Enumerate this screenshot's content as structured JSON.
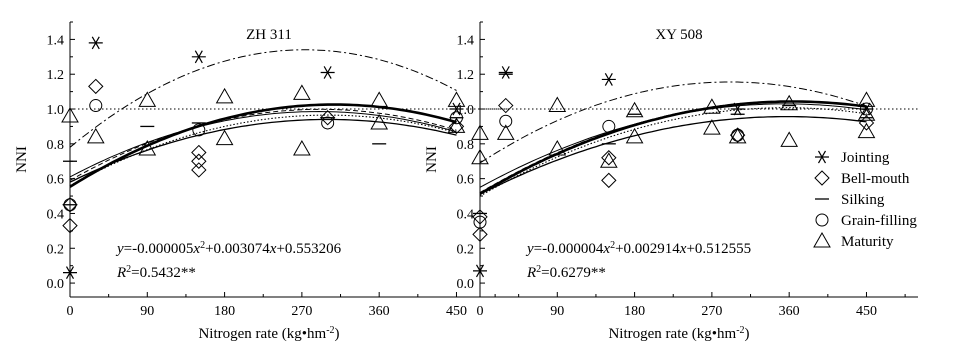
{
  "chart_data": [
    {
      "type": "scatter",
      "title": "ZH 311",
      "xlabel": "Nitrogen rate (kg•hm-2)",
      "ylabel": "NNI",
      "xlim": [
        0,
        510
      ],
      "ylim": [
        -0.08,
        1.5
      ],
      "xticks": [
        0,
        90,
        180,
        270,
        360,
        450
      ],
      "yticks": [
        0.0,
        0.2,
        0.4,
        0.6,
        0.8,
        1.0,
        1.2,
        1.4
      ],
      "reference_line": 1.0,
      "equation": "y=-0.000005x2+0.003074x+0.553206",
      "r2": "R2=0.5432**",
      "series": [
        {
          "name": "Jointing",
          "marker": "asterisk",
          "x": [
            0,
            30,
            150,
            300,
            450
          ],
          "y": [
            0.06,
            1.38,
            1.3,
            1.21,
            1.0
          ]
        },
        {
          "name": "Bell-mouth",
          "marker": "diamond",
          "x": [
            0,
            0,
            30,
            150,
            150,
            150,
            300,
            450
          ],
          "y": [
            0.33,
            0.45,
            1.13,
            0.65,
            0.7,
            0.75,
            0.95,
            0.9
          ]
        },
        {
          "name": "Silking",
          "marker": "dash",
          "x": [
            0,
            0,
            90,
            150,
            300,
            360,
            450
          ],
          "y": [
            0.45,
            0.7,
            0.9,
            0.92,
            0.95,
            0.8,
            0.95
          ]
        },
        {
          "name": "Grain-filling",
          "marker": "circle",
          "x": [
            0,
            30,
            150,
            300,
            450
          ],
          "y": [
            0.45,
            1.02,
            0.88,
            0.92,
            0.95
          ]
        },
        {
          "name": "Maturity",
          "marker": "triangle",
          "x": [
            0,
            30,
            90,
            90,
            180,
            180,
            270,
            270,
            360,
            360,
            450,
            450
          ],
          "y": [
            0.96,
            0.84,
            1.05,
            0.77,
            1.07,
            0.83,
            1.09,
            0.77,
            1.05,
            0.92,
            1.05,
            0.9
          ]
        }
      ],
      "fits": [
        {
          "style": "bold",
          "coef": [
            -5e-06,
            0.003074,
            0.553206
          ]
        },
        {
          "style": "dashdot",
          "coef": [
            -7.5e-06,
            0.0041,
            0.78
          ]
        },
        {
          "style": "thin",
          "coef": [
            -4.5e-06,
            0.0026,
            0.61
          ]
        },
        {
          "style": "dashed",
          "coef": [
            -4.8e-06,
            0.0028,
            0.59
          ]
        },
        {
          "style": "dotted",
          "coef": [
            -4.5e-06,
            0.0027,
            0.56
          ]
        },
        {
          "style": "solid",
          "coef": [
            -4e-06,
            0.0024,
            0.58
          ]
        }
      ]
    },
    {
      "type": "scatter",
      "title": "XY 508",
      "xlabel": "Nitrogen rate (kg•hm-2)",
      "ylabel": "NNI",
      "xlim": [
        0,
        510
      ],
      "ylim": [
        -0.08,
        1.5
      ],
      "xticks": [
        0,
        90,
        180,
        270,
        360,
        450
      ],
      "yticks": [
        0.0,
        0.2,
        0.4,
        0.6,
        0.8,
        1.0,
        1.2,
        1.4
      ],
      "reference_line": 1.0,
      "equation": "y=-0.000004x2+0.002914x+0.512555",
      "r2": "R2=0.6279**",
      "series": [
        {
          "name": "Jointing",
          "marker": "asterisk",
          "x": [
            0,
            30,
            150,
            300,
            450
          ],
          "y": [
            0.07,
            1.21,
            1.17,
            1.0,
            1.0
          ]
        },
        {
          "name": "Bell-mouth",
          "marker": "diamond",
          "x": [
            0,
            0,
            30,
            150,
            150,
            300,
            450
          ],
          "y": [
            0.28,
            0.38,
            1.02,
            0.59,
            0.72,
            0.85,
            0.92
          ]
        },
        {
          "name": "Silking",
          "marker": "dash",
          "x": [
            0,
            30,
            150,
            180,
            300,
            360,
            450
          ],
          "y": [
            0.4,
            1.2,
            0.8,
            0.97,
            0.97,
            1.02,
            0.95
          ]
        },
        {
          "name": "Grain-filling",
          "marker": "circle",
          "x": [
            0,
            30,
            150,
            300,
            450
          ],
          "y": [
            0.35,
            0.93,
            0.9,
            0.85,
            1.0
          ]
        },
        {
          "name": "Maturity",
          "marker": "triangle",
          "x": [
            0,
            0,
            30,
            90,
            90,
            150,
            180,
            180,
            270,
            270,
            300,
            360,
            360,
            450,
            450,
            450
          ],
          "y": [
            0.86,
            0.72,
            0.86,
            1.02,
            0.77,
            0.7,
            0.99,
            0.84,
            1.01,
            0.89,
            0.84,
            1.03,
            0.82,
            1.05,
            0.97,
            0.87
          ]
        }
      ],
      "fits": [
        {
          "style": "bold",
          "coef": [
            -4e-06,
            0.002914,
            0.512555
          ]
        },
        {
          "style": "dashdot",
          "coef": [
            -5.5e-06,
            0.0032,
            0.69
          ]
        },
        {
          "style": "thin",
          "coef": [
            -3.8e-06,
            0.0027,
            0.55
          ]
        },
        {
          "style": "dashed",
          "coef": [
            -4e-06,
            0.0029,
            0.52
          ]
        },
        {
          "style": "dotted",
          "coef": [
            -4e-06,
            0.00285,
            0.5
          ]
        },
        {
          "style": "solid",
          "coef": [
            -3.5e-06,
            0.0025,
            0.51
          ]
        }
      ]
    }
  ],
  "legend": [
    {
      "name": "Jointing",
      "marker": "asterisk"
    },
    {
      "name": "Bell-mouth",
      "marker": "diamond"
    },
    {
      "name": "Silking",
      "marker": "dash"
    },
    {
      "name": "Grain-filling",
      "marker": "circle"
    },
    {
      "name": "Maturity",
      "marker": "triangle"
    }
  ],
  "legend_position": "right"
}
